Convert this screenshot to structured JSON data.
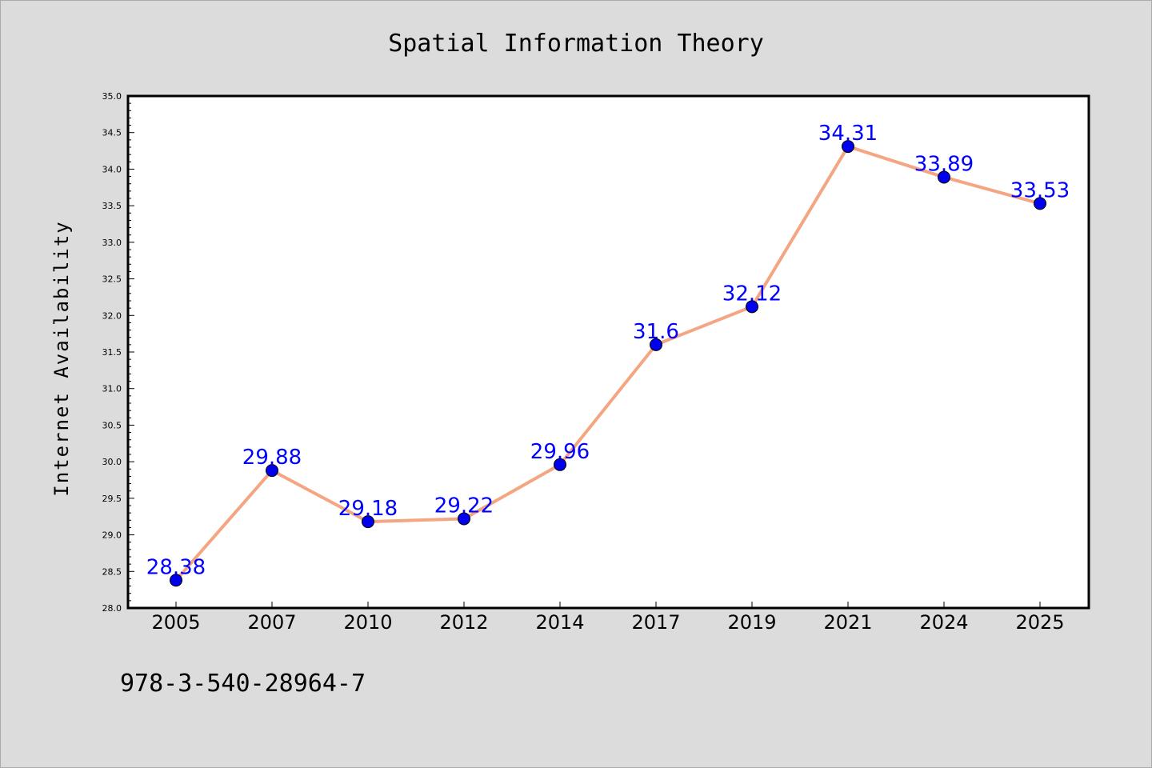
{
  "chart_data": {
    "type": "line",
    "title": "Spatial Information Theory",
    "xlabel": "",
    "ylabel": "Internet Availability",
    "categories": [
      "2005",
      "2007",
      "2010",
      "2012",
      "2014",
      "2017",
      "2019",
      "2021",
      "2024",
      "2025"
    ],
    "series": [
      {
        "values": [
          28.38,
          29.88,
          29.18,
          29.22,
          29.96,
          31.6,
          32.12,
          34.31,
          33.89,
          33.53
        ],
        "data_labels": [
          "28.38",
          "29.88",
          "29.18",
          "29.22",
          "29.96",
          "31.6",
          "32.12",
          "34.31",
          "33.89",
          "33.53"
        ],
        "line_color": "#f4a582",
        "marker_color": "#0000ee"
      }
    ],
    "ylim": [
      28.0,
      35.0
    ],
    "yticks": [
      "28.0",
      "28.5",
      "29.0",
      "29.5",
      "30.0",
      "30.5",
      "31.0",
      "31.5",
      "32.0",
      "32.5",
      "33.0",
      "33.5",
      "34.0",
      "34.5",
      "35.0"
    ],
    "grid": false,
    "legend": "none",
    "label_color": "#0000ff"
  },
  "footer": "978-3-540-28964-7"
}
